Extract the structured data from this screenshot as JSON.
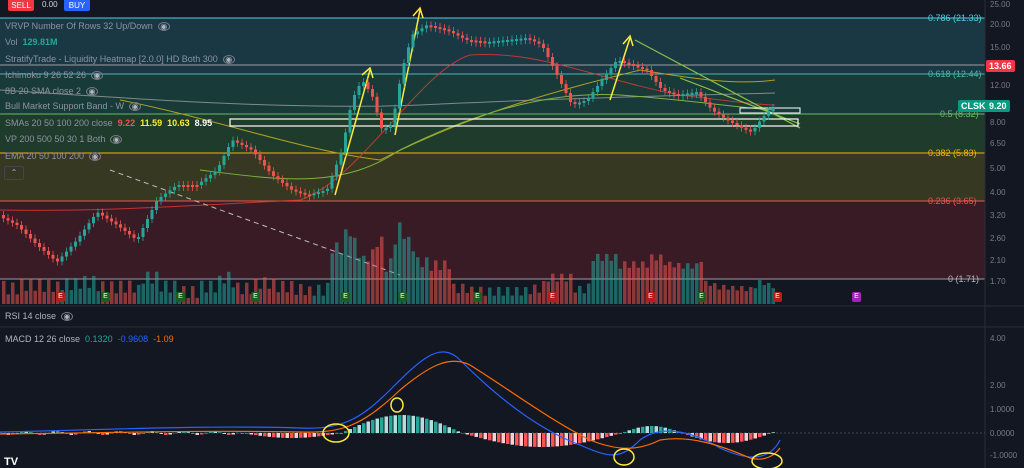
{
  "toolbar": {
    "sell_label": "SELL",
    "buy_label": "BUY",
    "spread": "0.00"
  },
  "indicators": [
    {
      "label": "VRVP Number Of Rows 32 Up/Down"
    },
    {
      "label": "Vol",
      "value": "129.81M"
    },
    {
      "label": "StratifyTrade - Liquidity Heatmap [2.0.0] HD Both 300"
    },
    {
      "label": "Ichimoku 9 26 52 26"
    },
    {
      "label": "8B 20 SMA close 2"
    },
    {
      "label": "Bull Market Support Band - W"
    },
    {
      "label": "SMAs 20 50 100 200 close",
      "values": [
        "9.22",
        "11.59",
        "10.63",
        "8.95"
      ]
    },
    {
      "label": "VP 200 500 50 30 1 Both"
    },
    {
      "label": "EMA 20 50 100 200"
    }
  ],
  "fib_levels": [
    {
      "label": "0.786 (21.33)"
    },
    {
      "label": "0.618 (12.44)"
    },
    {
      "label": "0.5 (8.32)"
    },
    {
      "label": "0.382 (5.83)"
    },
    {
      "label": "0.236 (3.65)"
    },
    {
      "label": "0 (1.71)"
    }
  ],
  "price_axis": {
    "ticks": [
      "25.00",
      "20.00",
      "15.00",
      "12.00",
      "8.00",
      "6.50",
      "5.00",
      "4.00",
      "3.20",
      "2.60",
      "2.10",
      "1.70"
    ],
    "current_price_tag": "13.66",
    "symbol_tag": "CLSK",
    "symbol_price": "9.20"
  },
  "rsi": {
    "title": "RSI 14 close"
  },
  "macd": {
    "title": "MACD 12 26 close",
    "values": [
      "0.1320",
      "-0.9608",
      "-1.09"
    ],
    "ticks": [
      "4.00",
      "2.00",
      "1.0000",
      "0.0000",
      "-1.0000"
    ]
  },
  "colors": {
    "background": "#131722",
    "bull": "#26a69a",
    "bear": "#ef5350",
    "macd_line": "#2962ff",
    "signal_line": "#ff6d00",
    "annotation": "#ffeb3b",
    "trend": "#8bc34a"
  },
  "earnings_marker": "E",
  "footer_logo": "TV"
}
